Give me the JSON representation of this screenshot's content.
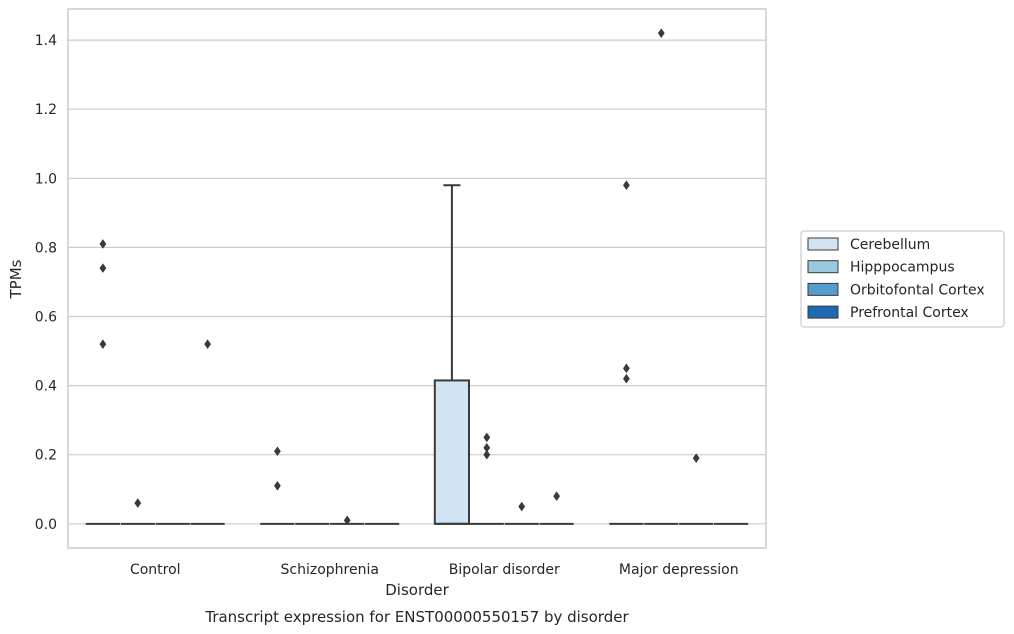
{
  "chart_data": {
    "type": "box",
    "title": "",
    "caption": "Transcript expression for ENST00000550157 by disorder",
    "xlabel": "Disorder",
    "ylabel": "TPMs",
    "ylim": [
      -0.07,
      1.49
    ],
    "yticks": [
      0.0,
      0.2,
      0.4,
      0.6,
      0.8,
      1.0,
      1.2,
      1.4
    ],
    "ytick_labels": [
      "0.0",
      "0.2",
      "0.4",
      "0.6",
      "0.8",
      "1.0",
      "1.2",
      "1.4"
    ],
    "grid": true,
    "legend_position": "right",
    "categories": [
      "Control",
      "Schizophrenia",
      "Bipolar disorder",
      "Major depression"
    ],
    "series": [
      {
        "name": "Cerebellum",
        "color": "#d2e3f3",
        "boxes": [
          {
            "category": "Control",
            "q1": 0,
            "median": 0,
            "q3": 0,
            "whisker_low": 0,
            "whisker_high": 0,
            "outliers": [
              0.81,
              0.74,
              0.52
            ]
          },
          {
            "category": "Schizophrenia",
            "q1": 0,
            "median": 0,
            "q3": 0,
            "whisker_low": 0,
            "whisker_high": 0,
            "outliers": [
              0.21,
              0.11
            ]
          },
          {
            "category": "Bipolar disorder",
            "q1": 0,
            "median": 0,
            "q3": 0.415,
            "whisker_low": 0,
            "whisker_high": 0.98,
            "outliers": []
          },
          {
            "category": "Major depression",
            "q1": 0,
            "median": 0,
            "q3": 0,
            "whisker_low": 0,
            "whisker_high": 0,
            "outliers": [
              0.98,
              0.45,
              0.42
            ]
          }
        ]
      },
      {
        "name": "Hipppocampus",
        "color": "#9ac8e0",
        "boxes": [
          {
            "category": "Control",
            "q1": 0,
            "median": 0,
            "q3": 0,
            "whisker_low": 0,
            "whisker_high": 0,
            "outliers": [
              0.06
            ]
          },
          {
            "category": "Schizophrenia",
            "q1": 0,
            "median": 0,
            "q3": 0,
            "whisker_low": 0,
            "whisker_high": 0,
            "outliers": []
          },
          {
            "category": "Bipolar disorder",
            "q1": 0,
            "median": 0,
            "q3": 0,
            "whisker_low": 0,
            "whisker_high": 0,
            "outliers": [
              0.25,
              0.22,
              0.2
            ]
          },
          {
            "category": "Major depression",
            "q1": 0,
            "median": 0,
            "q3": 0,
            "whisker_low": 0,
            "whisker_high": 0,
            "outliers": [
              1.42
            ]
          }
        ]
      },
      {
        "name": "Orbitofontal Cortex",
        "color": "#529dcc",
        "boxes": [
          {
            "category": "Control",
            "q1": 0,
            "median": 0,
            "q3": 0,
            "whisker_low": 0,
            "whisker_high": 0,
            "outliers": []
          },
          {
            "category": "Schizophrenia",
            "q1": 0,
            "median": 0,
            "q3": 0,
            "whisker_low": 0,
            "whisker_high": 0,
            "outliers": [
              0.01
            ]
          },
          {
            "category": "Bipolar disorder",
            "q1": 0,
            "median": 0,
            "q3": 0,
            "whisker_low": 0,
            "whisker_high": 0,
            "outliers": [
              0.05
            ]
          },
          {
            "category": "Major depression",
            "q1": 0,
            "median": 0,
            "q3": 0,
            "whisker_low": 0,
            "whisker_high": 0,
            "outliers": [
              0.19
            ]
          }
        ]
      },
      {
        "name": "Prefrontal Cortex",
        "color": "#1c6aaf",
        "boxes": [
          {
            "category": "Control",
            "q1": 0,
            "median": 0,
            "q3": 0,
            "whisker_low": 0,
            "whisker_high": 0,
            "outliers": [
              0.52
            ]
          },
          {
            "category": "Schizophrenia",
            "q1": 0,
            "median": 0,
            "q3": 0,
            "whisker_low": 0,
            "whisker_high": 0,
            "outliers": []
          },
          {
            "category": "Bipolar disorder",
            "q1": 0,
            "median": 0,
            "q3": 0,
            "whisker_low": 0,
            "whisker_high": 0,
            "outliers": [
              0.08
            ]
          },
          {
            "category": "Major depression",
            "q1": 0,
            "median": 0,
            "q3": 0,
            "whisker_low": 0,
            "whisker_high": 0,
            "outliers": []
          }
        ]
      }
    ]
  }
}
